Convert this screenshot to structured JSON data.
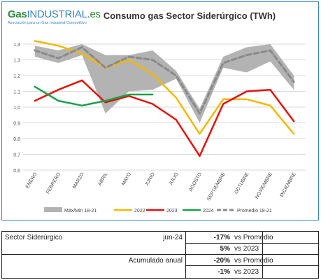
{
  "brand": {
    "name_main": "Gas",
    "name_light": "INDUSTRIAL",
    "name_tld": ".es",
    "tagline": "Asociación para un Gas Industrial Competitivo"
  },
  "chart_data": {
    "type": "line",
    "title": "Consumo gas Sector Siderúrgico (TWh)",
    "categories": [
      "ENERO",
      "FEBRERO",
      "MARZO",
      "ABRIL",
      "MAYO",
      "JUNIO",
      "JULIO",
      "AGOSTO",
      "SEPTIEMBRE",
      "OCTUBRE",
      "NOVIEMBRE",
      "DICIEMBRE"
    ],
    "ylim": [
      0.6,
      1.4
    ],
    "yticks": [
      "0,6",
      "0,7",
      "0,8",
      "0,9",
      "1,0",
      "1,1",
      "1,2",
      "1,3",
      "1,4"
    ],
    "grid": true,
    "legend_position": "bottom",
    "band": {
      "name": "Máx/Min 18-21",
      "color": "#b3b3b3",
      "max": [
        1.39,
        1.36,
        1.4,
        1.33,
        1.33,
        1.36,
        1.23,
        0.99,
        1.32,
        1.38,
        1.4,
        1.2
      ],
      "min": [
        1.32,
        1.28,
        1.33,
        0.96,
        1.1,
        1.11,
        1.18,
        0.9,
        1.25,
        1.22,
        1.29,
        1.11
      ]
    },
    "series": [
      {
        "name": "2022",
        "color": "#f5b800",
        "dashed": false,
        "values": [
          1.42,
          1.39,
          1.34,
          1.25,
          1.3,
          1.21,
          1.06,
          0.83,
          1.05,
          1.05,
          1.01,
          0.83
        ]
      },
      {
        "name": "2023",
        "color": "#e3130f",
        "dashed": false,
        "values": [
          1.04,
          1.11,
          1.17,
          1.03,
          1.07,
          1.02,
          0.92,
          0.69,
          1.02,
          1.1,
          1.11,
          0.91
        ]
      },
      {
        "name": "2024",
        "color": "#18a24b",
        "dashed": false,
        "values": [
          1.13,
          1.04,
          1.01,
          1.04,
          1.08,
          1.08,
          null,
          null,
          null,
          null,
          null,
          null
        ]
      },
      {
        "name": "Promedio 18-21",
        "color": "#8a8a8a",
        "dashed": true,
        "values": [
          1.36,
          1.31,
          1.38,
          1.25,
          1.32,
          1.3,
          1.2,
          0.96,
          1.28,
          1.33,
          1.36,
          1.16
        ]
      }
    ]
  },
  "table": {
    "row1": {
      "label": "Sector Siderúrgico",
      "period": "jun-24",
      "pct1": "-17%",
      "txt1": "vs Promedio",
      "pct2": "5%",
      "txt2": "vs 2023"
    },
    "row2": {
      "label": "Acumulado anual",
      "pct1": "-20%",
      "txt1": "vs Promedio",
      "pct2": "-1%",
      "txt2": "vs 2023"
    }
  }
}
